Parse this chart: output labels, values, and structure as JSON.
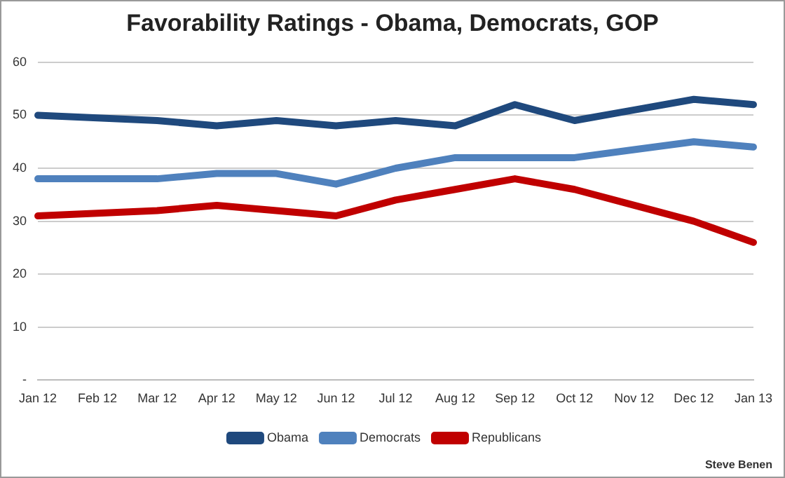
{
  "chart_data": {
    "type": "line",
    "title": "Favorability Ratings - Obama, Democrats, GOP",
    "categories": [
      "Jan 12",
      "Feb 12",
      "Mar 12",
      "Apr 12",
      "May 12",
      "Jun 12",
      "Jul 12",
      "Aug 12",
      "Sep 12",
      "Oct 12",
      "Nov 12",
      "Dec 12",
      "Jan 13"
    ],
    "series": [
      {
        "name": "Obama",
        "color": "#1f497d",
        "values": [
          50,
          49.5,
          49,
          48,
          49,
          48,
          49,
          48,
          52,
          49,
          51,
          53,
          52
        ]
      },
      {
        "name": "Democrats",
        "color": "#4f81bd",
        "values": [
          38,
          38,
          38,
          39,
          39,
          37,
          40,
          42,
          42,
          42,
          43.5,
          45,
          44
        ]
      },
      {
        "name": "Republicans",
        "color": "#c00000",
        "values": [
          31,
          31.5,
          32,
          33,
          32,
          31,
          34,
          36,
          38,
          36,
          33,
          30,
          26
        ]
      }
    ],
    "ylim": [
      0,
      60
    ],
    "yticks": [
      {
        "value": 0,
        "label": "-"
      },
      10,
      20,
      30,
      40,
      50,
      60
    ],
    "grid": "y",
    "legend": "bottom",
    "marker": "none",
    "line_style": "solid",
    "annotations": [
      "Steve Benen"
    ]
  }
}
